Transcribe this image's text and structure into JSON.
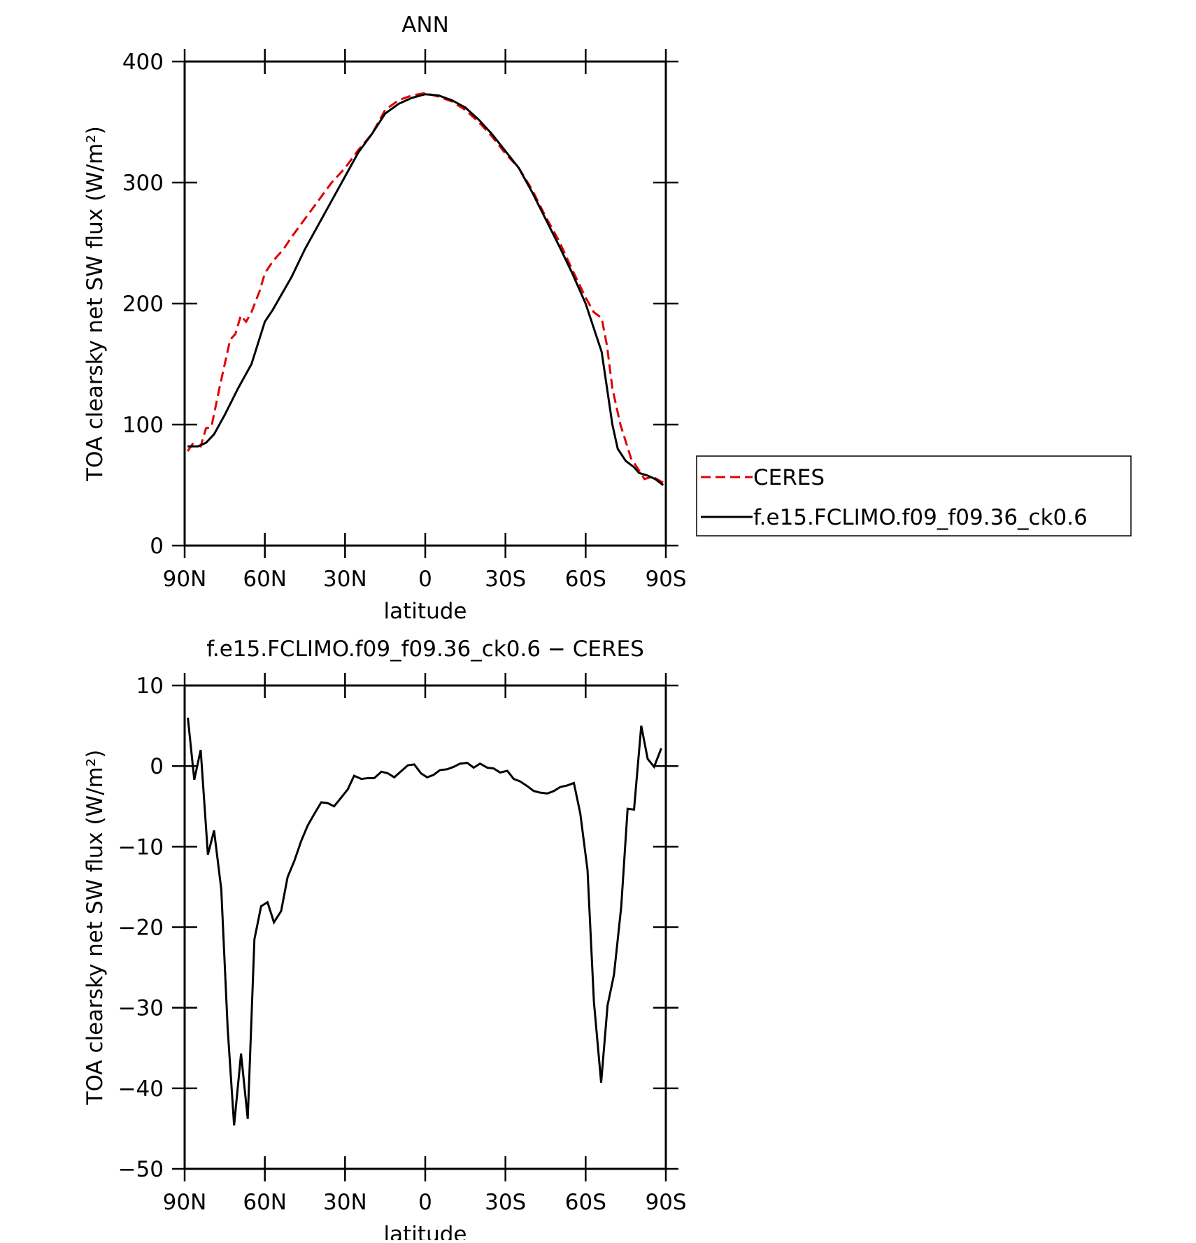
{
  "chart_data": [
    {
      "type": "line",
      "title": "ANN",
      "xlabel": "latitude",
      "ylabel": "TOA clearsky net SW flux (W/m²)",
      "xlim": [
        90,
        -90
      ],
      "ylim": [
        0,
        400
      ],
      "xticks": [
        {
          "value": 90,
          "label": "90N"
        },
        {
          "value": 60,
          "label": "60N"
        },
        {
          "value": 30,
          "label": "30N"
        },
        0,
        {
          "value": -30,
          "label": "30S"
        },
        {
          "value": -60,
          "label": "60S"
        },
        {
          "value": -90,
          "label": "90S"
        }
      ],
      "yticks": [
        0,
        100,
        200,
        300,
        400
      ],
      "legend": "outside-right",
      "series": [
        {
          "name": "CERES",
          "color": "#e00000",
          "style": "dashed",
          "x": [
            88.9,
            87,
            84,
            82,
            80,
            77,
            73,
            71,
            69,
            67,
            65,
            62,
            60,
            57,
            53,
            50,
            45,
            40,
            35,
            30,
            25,
            20,
            15,
            10,
            5,
            0,
            -5,
            -10,
            -15,
            -20,
            -25,
            -30,
            -35,
            -40,
            -45,
            -50,
            -55,
            -60,
            -63,
            -66,
            -68,
            -70,
            -73,
            -77,
            -80,
            -82,
            -85,
            -89
          ],
          "values": [
            78,
            84,
            82,
            97,
            98,
            130,
            170,
            175,
            190,
            185,
            193,
            210,
            225,
            235,
            245,
            255,
            270,
            285,
            300,
            312,
            327,
            340,
            360,
            368,
            372,
            374,
            371,
            367,
            360,
            350,
            338,
            324,
            312,
            294,
            272,
            252,
            228,
            205,
            193,
            188,
            165,
            130,
            100,
            72,
            62,
            55,
            57,
            52
          ]
        },
        {
          "name": "f.e15.FCLIMO.f09_f09.36_ck0.6",
          "color": "#000000",
          "style": "solid",
          "x": [
            88.9,
            85,
            82,
            79,
            75,
            70,
            65,
            60,
            57,
            50,
            45,
            40,
            35,
            30,
            25,
            20,
            15,
            10,
            5,
            0,
            -5,
            -10,
            -15,
            -20,
            -25,
            -30,
            -35,
            -40,
            -45,
            -50,
            -55,
            -60,
            -63,
            -66,
            -68,
            -70,
            -72,
            -75,
            -78,
            -80,
            -83,
            -86,
            -89
          ],
          "values": [
            82,
            82,
            85,
            92,
            108,
            130,
            150,
            185,
            195,
            222,
            245,
            265,
            285,
            305,
            325,
            340,
            357,
            365,
            370,
            373,
            372,
            368,
            362,
            352,
            340,
            326,
            312,
            292,
            270,
            248,
            225,
            200,
            180,
            160,
            130,
            100,
            80,
            70,
            65,
            60,
            58,
            55,
            50
          ]
        }
      ]
    },
    {
      "type": "line",
      "title": "f.e15.FCLIMO.f09_f09.36_ck0.6 − CERES",
      "xlabel": "latitude",
      "ylabel": "TOA clearsky net SW flux (W/m²)",
      "xlim": [
        90,
        -90
      ],
      "ylim": [
        -50,
        10
      ],
      "xticks": [
        {
          "value": 90,
          "label": "90N"
        },
        {
          "value": 60,
          "label": "60N"
        },
        {
          "value": 30,
          "label": "30N"
        },
        0,
        {
          "value": -30,
          "label": "30S"
        },
        {
          "value": -60,
          "label": "60S"
        },
        {
          "value": -90,
          "label": "90S"
        }
      ],
      "yticks": [
        {
          "value": -50,
          "label": "−50"
        },
        {
          "value": -40,
          "label": "−40"
        },
        {
          "value": -30,
          "label": "−30"
        },
        {
          "value": -20,
          "label": "−20"
        },
        {
          "value": -10,
          "label": "−10"
        },
        0,
        10
      ],
      "series": [
        {
          "color": "#000000",
          "style": "solid",
          "x": [
            88.8,
            86.4,
            84,
            81.3,
            79,
            76.3,
            73.9,
            71.5,
            68.9,
            66.4,
            63.9,
            61.4,
            59,
            56.6,
            53.9,
            51.5,
            49,
            46.4,
            44,
            41.6,
            38.9,
            36.5,
            34.1,
            31.4,
            29,
            26.6,
            23.9,
            21.5,
            19.1,
            16.4,
            14,
            11.6,
            8.9,
            6.5,
            4.1,
            1.6,
            -0.7,
            -3.1,
            -5.5,
            -8.2,
            -10.6,
            -13,
            -15.7,
            -18.1,
            -20.5,
            -23.2,
            -25.6,
            -28,
            -30.7,
            -33.1,
            -35.5,
            -38.2,
            -40.6,
            -43,
            -45.7,
            -48.1,
            -50.5,
            -53.2,
            -55.6,
            -58,
            -60.7,
            -63.1,
            -65.8,
            -68.2,
            -70.6,
            -73.3,
            -75.7,
            -78.1,
            -80.8,
            -83.2,
            -85.6,
            -88.3
          ],
          "values": [
            6,
            -1.7,
            2,
            -11,
            -8,
            -15.3,
            -32.6,
            -44.6,
            -35.7,
            -43.8,
            -21.5,
            -17.4,
            -16.9,
            -19.4,
            -18,
            -13.8,
            -11.8,
            -9.3,
            -7.4,
            -6,
            -4.5,
            -4.6,
            -5,
            -3.9,
            -2.9,
            -1.2,
            -1.6,
            -1.5,
            -1.5,
            -0.7,
            -0.9,
            -1.4,
            -0.6,
            0.1,
            0.2,
            -0.9,
            -1.4,
            -1.1,
            -0.5,
            -0.4,
            -0.1,
            0.3,
            0.4,
            -0.2,
            0.3,
            -0.2,
            -0.3,
            -0.8,
            -0.6,
            -1.6,
            -1.9,
            -2.5,
            -3.1,
            -3.3,
            -3.4,
            -3.1,
            -2.6,
            -2.4,
            -2.1,
            -5.9,
            -12.9,
            -29.3,
            -39.3,
            -29.7,
            -25.9,
            -17.5,
            -5.3,
            -5.4,
            5,
            0.9,
            -0.1,
            2.2
          ]
        }
      ]
    }
  ]
}
